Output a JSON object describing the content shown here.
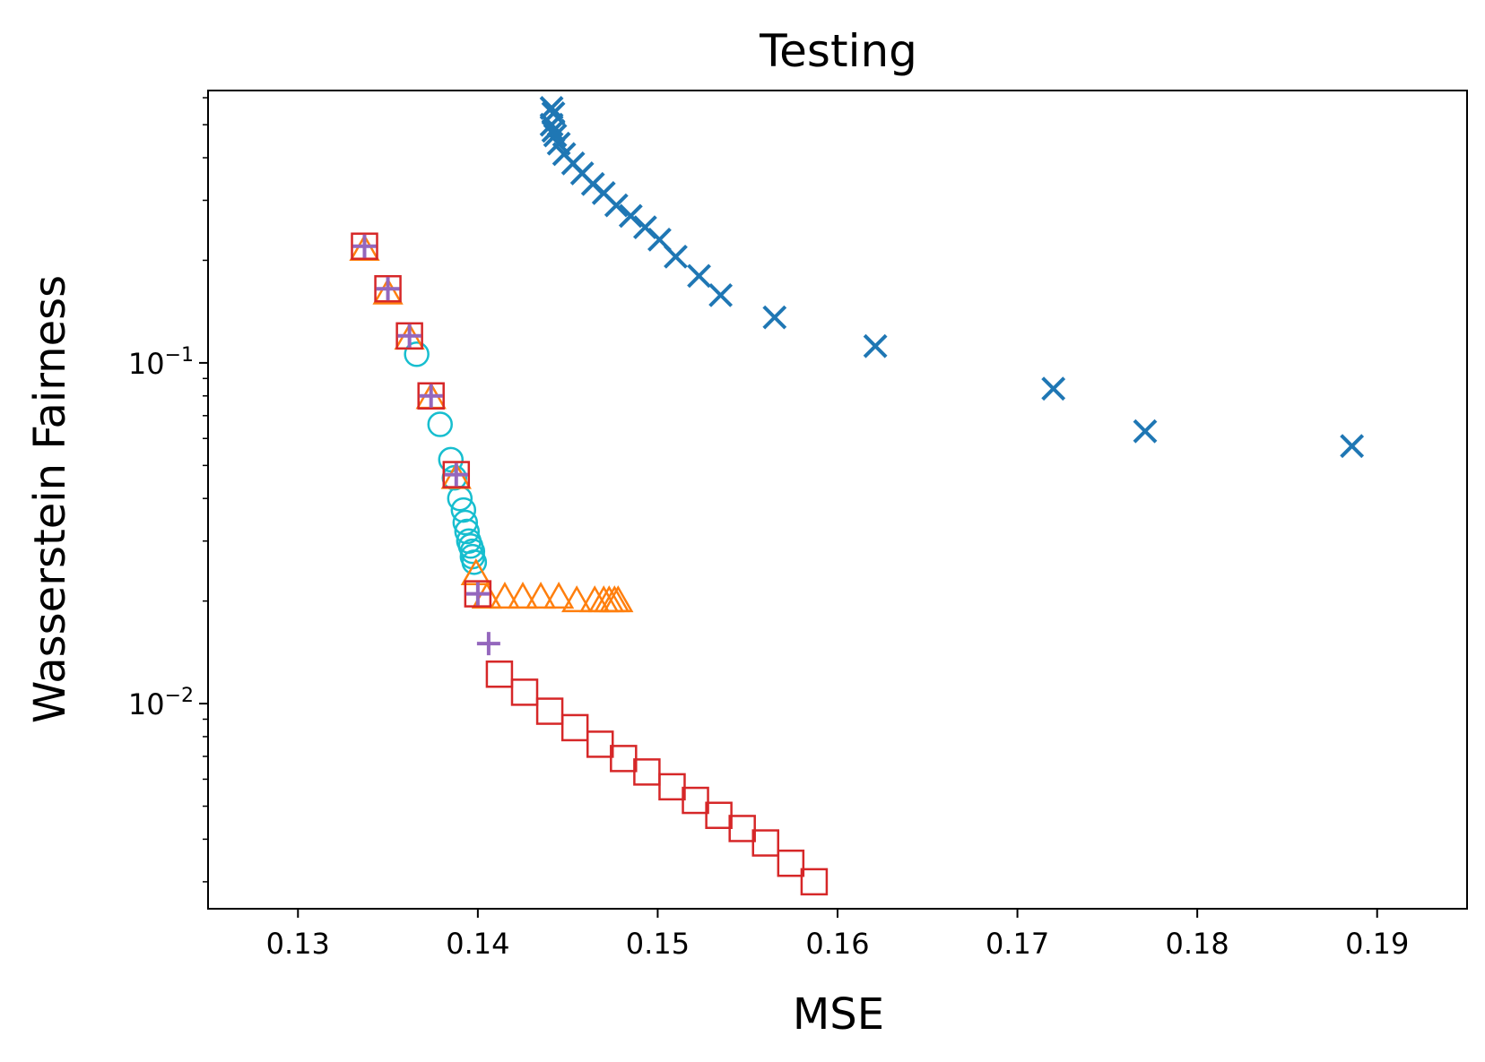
{
  "chart_data": {
    "type": "scatter",
    "title": "Testing",
    "xlabel": "MSE",
    "ylabel": "Wasserstein Fairness",
    "xscale": "linear",
    "yscale": "log",
    "xlim": [
      0.125,
      0.195
    ],
    "ylim": [
      0.0025,
      0.63
    ],
    "grid": false,
    "legend": "none",
    "xticks": [
      {
        "value": 0.13,
        "label": "0.13"
      },
      {
        "value": 0.14,
        "label": "0.14"
      },
      {
        "value": 0.15,
        "label": "0.15"
      },
      {
        "value": 0.16,
        "label": "0.16"
      },
      {
        "value": 0.17,
        "label": "0.17"
      },
      {
        "value": 0.18,
        "label": "0.18"
      },
      {
        "value": 0.19,
        "label": "0.19"
      }
    ],
    "yticks": [
      {
        "value": 0.01,
        "base": "10",
        "exp": "−2"
      },
      {
        "value": 0.1,
        "base": "10",
        "exp": "−1"
      }
    ],
    "series": [
      {
        "name": "x-marker series",
        "marker": "x",
        "color": "#1f77b4",
        "points": [
          [
            0.1441,
            0.56
          ],
          [
            0.1442,
            0.54
          ],
          [
            0.1441,
            0.5
          ],
          [
            0.1442,
            0.48
          ],
          [
            0.1443,
            0.465
          ],
          [
            0.1445,
            0.44
          ],
          [
            0.1448,
            0.41
          ],
          [
            0.1453,
            0.385
          ],
          [
            0.1458,
            0.36
          ],
          [
            0.1464,
            0.335
          ],
          [
            0.147,
            0.315
          ],
          [
            0.1477,
            0.29
          ],
          [
            0.1485,
            0.27
          ],
          [
            0.1493,
            0.25
          ],
          [
            0.1501,
            0.23
          ],
          [
            0.151,
            0.205
          ],
          [
            0.1523,
            0.18
          ],
          [
            0.1535,
            0.158
          ],
          [
            0.1565,
            0.136
          ],
          [
            0.1621,
            0.112
          ],
          [
            0.172,
            0.084
          ],
          [
            0.1771,
            0.063
          ],
          [
            0.1886,
            0.057
          ]
        ]
      },
      {
        "name": "circle series",
        "marker": "circle",
        "color": "#17becf",
        "points": [
          [
            0.1366,
            0.106
          ],
          [
            0.1379,
            0.066
          ],
          [
            0.1385,
            0.052
          ],
          [
            0.1387,
            0.046
          ],
          [
            0.139,
            0.04
          ],
          [
            0.1392,
            0.037
          ],
          [
            0.1393,
            0.034
          ],
          [
            0.1394,
            0.032
          ],
          [
            0.1395,
            0.03
          ],
          [
            0.1396,
            0.029
          ],
          [
            0.1397,
            0.028
          ],
          [
            0.1397,
            0.027
          ],
          [
            0.1398,
            0.026
          ]
        ]
      },
      {
        "name": "triangle series",
        "marker": "triangle",
        "color": "#ff7f0e",
        "points": [
          [
            0.1337,
            0.215
          ],
          [
            0.135,
            0.16
          ],
          [
            0.1362,
            0.118
          ],
          [
            0.1374,
            0.079
          ],
          [
            0.1388,
            0.046
          ],
          [
            0.1399,
            0.024
          ],
          [
            0.1405,
            0.0205
          ],
          [
            0.1415,
            0.0205
          ],
          [
            0.1425,
            0.0205
          ],
          [
            0.1435,
            0.0205
          ],
          [
            0.1445,
            0.0205
          ],
          [
            0.1455,
            0.02
          ],
          [
            0.1465,
            0.02
          ],
          [
            0.147,
            0.02
          ],
          [
            0.1473,
            0.02
          ],
          [
            0.1476,
            0.02
          ],
          [
            0.1478,
            0.02
          ]
        ]
      },
      {
        "name": "square series",
        "marker": "square",
        "color": "#d62728",
        "points": [
          [
            0.1337,
            0.22
          ],
          [
            0.135,
            0.165
          ],
          [
            0.1362,
            0.12
          ],
          [
            0.1374,
            0.08
          ],
          [
            0.1388,
            0.047
          ],
          [
            0.14,
            0.021
          ],
          [
            0.1412,
            0.0122
          ],
          [
            0.1426,
            0.0108
          ],
          [
            0.144,
            0.0095
          ],
          [
            0.1454,
            0.0085
          ],
          [
            0.1468,
            0.0076
          ],
          [
            0.1481,
            0.0069
          ],
          [
            0.1494,
            0.0063
          ],
          [
            0.1508,
            0.0057
          ],
          [
            0.1521,
            0.0052
          ],
          [
            0.1534,
            0.0047
          ],
          [
            0.1547,
            0.0043
          ],
          [
            0.156,
            0.0039
          ],
          [
            0.1574,
            0.0034
          ],
          [
            0.1587,
            0.003
          ]
        ]
      },
      {
        "name": "plus series",
        "marker": "plus",
        "color": "#9467bd",
        "points": [
          [
            0.1337,
            0.22
          ],
          [
            0.135,
            0.165
          ],
          [
            0.1362,
            0.12
          ],
          [
            0.1374,
            0.08
          ],
          [
            0.1388,
            0.047
          ],
          [
            0.14,
            0.021
          ],
          [
            0.1406,
            0.015
          ]
        ]
      }
    ]
  }
}
